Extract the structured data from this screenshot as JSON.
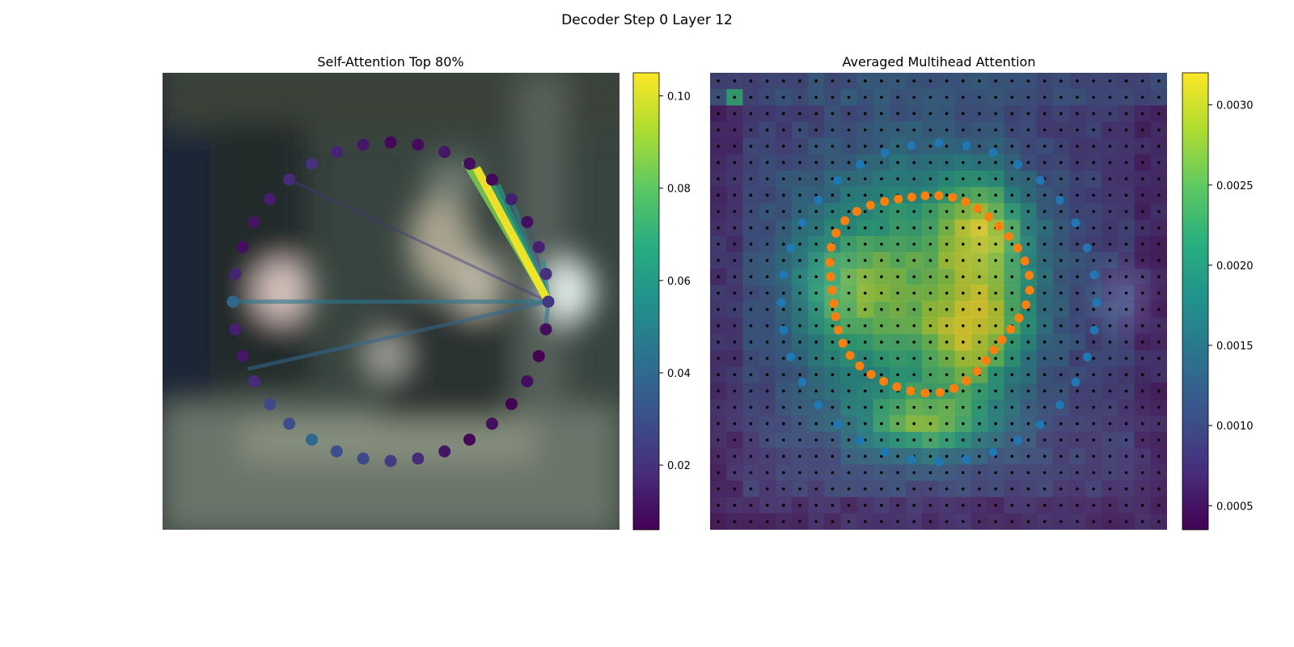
{
  "figure": {
    "suptitle": "Decoder Step 0 Layer 12"
  },
  "chart_data": [
    {
      "type": "scatter",
      "title": "Self-Attention Top 80%",
      "colorbar": {
        "colormap": "viridis",
        "range": [
          0.006,
          0.105
        ],
        "ticks": [
          "0.02",
          "0.04",
          "0.06",
          "0.08",
          "0.10"
        ]
      },
      "background_colors": [
        "#2f3c3a",
        "#1a2638",
        "#6e7a72",
        "#c8b8b0",
        "#4a5a55"
      ],
      "points": [
        {
          "a": 0,
          "v": 0.022
        },
        {
          "a": 10,
          "v": 0.02
        },
        {
          "a": 20,
          "v": 0.015
        },
        {
          "a": 30,
          "v": 0.01
        },
        {
          "a": 40,
          "v": 0.015
        },
        {
          "a": 50,
          "v": 0.008
        },
        {
          "a": 60,
          "v": 0.009
        },
        {
          "a": 70,
          "v": 0.012
        },
        {
          "a": 80,
          "v": 0.009
        },
        {
          "a": 90,
          "v": 0.008
        },
        {
          "a": 100,
          "v": 0.012
        },
        {
          "a": 110,
          "v": 0.016
        },
        {
          "a": 120,
          "v": 0.02
        },
        {
          "a": 130,
          "v": 0.018
        },
        {
          "a": 140,
          "v": 0.014
        },
        {
          "a": 150,
          "v": 0.012
        },
        {
          "a": 160,
          "v": 0.01
        },
        {
          "a": 170,
          "v": 0.016
        },
        {
          "a": 180,
          "v": 0.04
        },
        {
          "a": 190,
          "v": 0.015
        },
        {
          "a": 200,
          "v": 0.012
        },
        {
          "a": 210,
          "v": 0.018
        },
        {
          "a": 220,
          "v": 0.028
        },
        {
          "a": 230,
          "v": 0.03
        },
        {
          "a": 240,
          "v": 0.04
        },
        {
          "a": 250,
          "v": 0.03
        },
        {
          "a": 260,
          "v": 0.028
        },
        {
          "a": 270,
          "v": 0.024
        },
        {
          "a": 280,
          "v": 0.018
        },
        {
          "a": 290,
          "v": 0.012
        },
        {
          "a": 300,
          "v": 0.008
        },
        {
          "a": 310,
          "v": 0.01
        },
        {
          "a": 320,
          "v": 0.006
        },
        {
          "a": 330,
          "v": 0.01
        },
        {
          "a": 340,
          "v": 0.006
        },
        {
          "a": 350,
          "v": 0.01
        }
      ],
      "query_angle": 0,
      "edges": [
        {
          "to": 57,
          "v": 0.104
        },
        {
          "to": 62,
          "v": 0.085
        },
        {
          "to": 52,
          "v": 0.07
        },
        {
          "to": 47,
          "v": 0.06
        },
        {
          "to": 40,
          "v": 0.05
        },
        {
          "to": 15,
          "v": 0.055
        },
        {
          "to": -12,
          "v": 0.045
        },
        {
          "to": 180,
          "v": 0.045
        },
        {
          "to": 205,
          "v": 0.04
        },
        {
          "to": 0,
          "v": 0.035
        },
        {
          "to": 28,
          "v": 0.03
        },
        {
          "to": 130,
          "v": 0.022
        }
      ]
    },
    {
      "type": "heatmap",
      "title": "Averaged Multihead Attention",
      "colorbar": {
        "colormap": "viridis",
        "range": [
          0.00035,
          0.0032
        ],
        "ticks": [
          "0.0005",
          "0.0010",
          "0.0015",
          "0.0020",
          "0.0025",
          "0.0030"
        ]
      },
      "grid_size": 28,
      "outer_ring_color": "#1f77b4",
      "inner_ring_color": "#ff7f0e",
      "grid_dot_color": "#000000"
    }
  ]
}
